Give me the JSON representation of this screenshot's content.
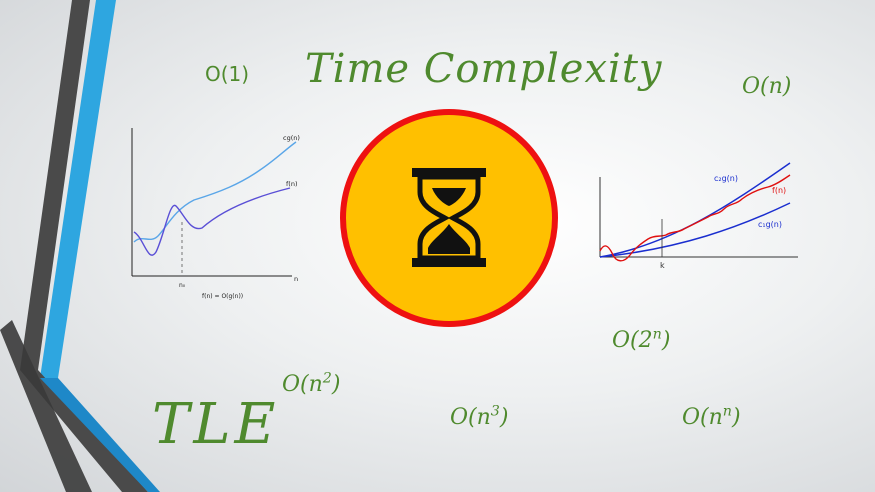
{
  "slide": {
    "title": "Time Complexity",
    "tle": "TLE",
    "notations": {
      "o1": "O(1)",
      "on_prefix": "O(n",
      "on_suffix": ")",
      "o2n_prefix": "O(2",
      "o2n_sup": "n",
      "o2n_suffix": ")",
      "on2_prefix": "O(n",
      "on2_sup": "2",
      "on2_suffix": ")",
      "on3_prefix": "O(n",
      "on3_sup": "3",
      "on3_suffix": ")",
      "onn_prefix": "O(n",
      "onn_sup": "n",
      "onn_suffix": ")"
    }
  },
  "left_graph": {
    "label_cg": "cg(n)",
    "label_f": "f(n)",
    "label_n": "n",
    "label_n0": "n₀",
    "caption": "f(n) = O(g(n))"
  },
  "right_graph": {
    "label_c2g": "c₂g(n)",
    "label_f": "f(n)",
    "label_c1g": "c₁g(n)",
    "label_k": "k"
  },
  "icon": {
    "name": "hourglass-icon"
  },
  "colors": {
    "text_green": "#4f8a2e",
    "circle_fill": "#ffc000",
    "circle_stroke": "#ee1111",
    "accent_blue": "#29a9e1",
    "dark_gray": "#505050"
  }
}
